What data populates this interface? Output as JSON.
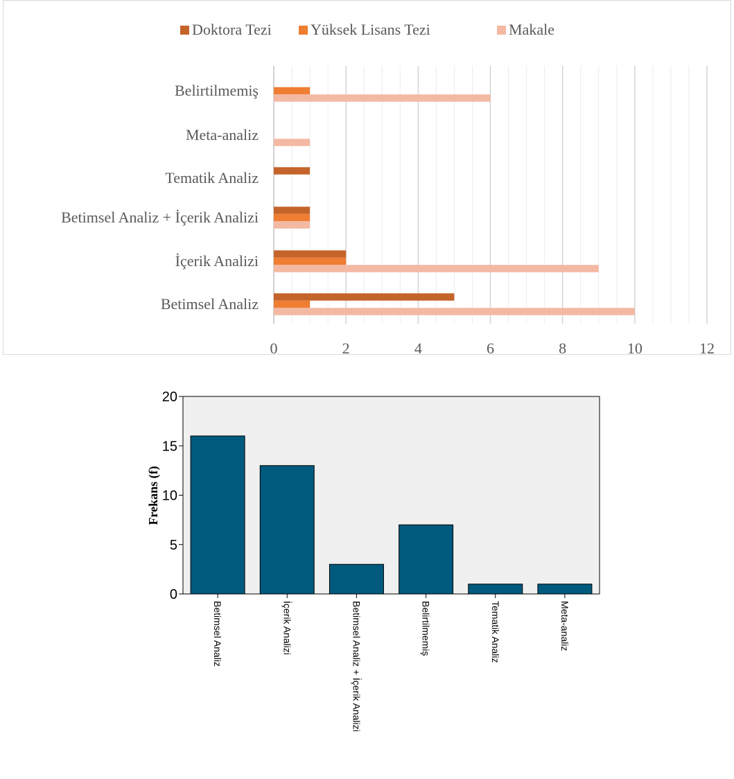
{
  "chart_data": [
    {
      "type": "bar",
      "orientation": "horizontal",
      "categories": [
        "Belirtilmemiş",
        "Meta-analiz",
        "Tematik Analiz",
        "Betimsel Analiz + İçerik Analizi",
        "İçerik Analizi",
        "Betimsel Analiz"
      ],
      "series": [
        {
          "name": "Doktora Tezi",
          "color": "#c5642a",
          "values": [
            0,
            0,
            1,
            1,
            2,
            5
          ]
        },
        {
          "name": "Yüksek Lisans Tezi",
          "color": "#ef7d32",
          "values": [
            1,
            0,
            0,
            1,
            2,
            1
          ]
        },
        {
          "name": "Makale",
          "color": "#f4b9a3",
          "values": [
            6,
            1,
            0,
            1,
            9,
            10
          ]
        }
      ],
      "xlim": [
        0,
        12
      ],
      "xticks": [
        "0",
        "2",
        "4",
        "6",
        "8",
        "10",
        "12"
      ],
      "grid": true,
      "legend": "top-center",
      "title": "",
      "xlabel": "",
      "ylabel": ""
    },
    {
      "type": "bar",
      "orientation": "vertical",
      "categories": [
        "Betimsel Analiz",
        "İçerik Analizi",
        "Betimsel Analiz + İçerik Analizi",
        "Belirtilmemiş",
        "Tematik Analiz",
        "Meta-analiz"
      ],
      "values": [
        16,
        13,
        3,
        7,
        1,
        1
      ],
      "color": "#005a7e",
      "background": "#f0f0f0",
      "ylim": [
        0,
        20
      ],
      "yticks": [
        "0",
        "5",
        "10",
        "15",
        "20"
      ],
      "ylabel": "Frekans (f)",
      "xlabel": "",
      "title": "",
      "grid": false
    }
  ]
}
